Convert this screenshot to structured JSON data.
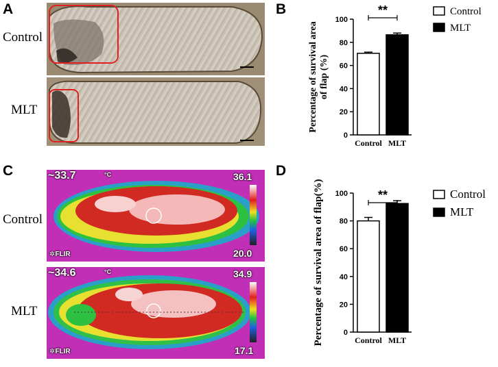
{
  "panels": {
    "A": {
      "letter": "A",
      "rows": [
        {
          "label": "Control"
        },
        {
          "label": "MLT"
        }
      ]
    },
    "C": {
      "letter": "C",
      "rows": [
        {
          "label": "Control",
          "temp_readout": "~33.7",
          "temp_unit": "°C",
          "scale_max": "36.1",
          "scale_min": "20.0",
          "brand": "FLIR"
        },
        {
          "label": "MLT",
          "temp_readout": "~34.6",
          "temp_unit": "°C",
          "scale_max": "34.9",
          "scale_min": "17.1",
          "brand": "FLIR"
        }
      ]
    },
    "B": {
      "letter": "B"
    },
    "D": {
      "letter": "D"
    }
  },
  "chart_data": [
    {
      "id": "B",
      "type": "bar",
      "categories": [
        "Control",
        "MLT"
      ],
      "values": [
        70.5,
        86.5
      ],
      "errors": [
        1.0,
        1.5
      ],
      "fills": [
        "#ffffff",
        "#000000"
      ],
      "ylabel_lines": [
        "Percentage of survival area",
        "of flap (%)"
      ],
      "ylim": [
        0,
        100
      ],
      "yticks": [
        "0",
        "20",
        "40",
        "60",
        "80",
        "100"
      ],
      "significance": "**",
      "legend": [
        {
          "label": "Control",
          "fill": "#ffffff"
        },
        {
          "label": "MLT",
          "fill": "#000000"
        }
      ],
      "legend_position": "top-right"
    },
    {
      "id": "D",
      "type": "bar",
      "categories": [
        "Control",
        "MLT"
      ],
      "values": [
        80,
        92.5
      ],
      "errors": [
        2.5,
        2.0
      ],
      "fills": [
        "#ffffff",
        "#000000"
      ],
      "ylabel_lines": [
        "Percentage of survival area of flap(%)"
      ],
      "ylim": [
        0,
        100
      ],
      "yticks": [
        "0",
        "20",
        "40",
        "60",
        "80",
        "100"
      ],
      "significance": "**",
      "legend": [
        {
          "label": "Control",
          "fill": "#ffffff"
        },
        {
          "label": "MLT",
          "fill": "#000000"
        }
      ],
      "legend_position": "top-right"
    }
  ]
}
